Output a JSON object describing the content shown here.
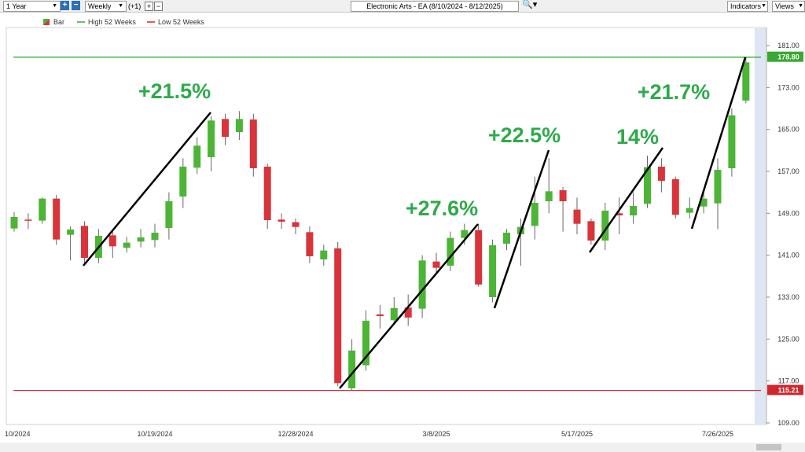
{
  "toolbar": {
    "period": "1 Year",
    "interval": "Weekly",
    "offset": "(+1)",
    "title": "Electronic Arts - EA (8/10/2024 - 8/12/2025)",
    "indicators": "Indicators",
    "views": "Views"
  },
  "chart_data": {
    "type": "candlestick",
    "legend": [
      "Bar",
      "High 52 Weeks",
      "Low 52 Weeks"
    ],
    "categories": [
      "10/2024",
      null,
      null,
      null,
      null,
      null,
      null,
      null,
      null,
      null,
      "10/19/2024",
      null,
      null,
      null,
      null,
      null,
      null,
      null,
      null,
      null,
      "12/28/2024",
      null,
      null,
      null,
      null,
      null,
      null,
      null,
      null,
      null,
      "3/8/2025",
      null,
      null,
      null,
      null,
      null,
      null,
      null,
      null,
      null,
      "5/17/2025",
      null,
      null,
      null,
      null,
      null,
      null,
      null,
      null,
      null,
      "7/26/2025",
      null,
      null
    ],
    "open": [
      146.1,
      147.8,
      147.6,
      151.8,
      144.9,
      146.6,
      140.5,
      144.8,
      142.4,
      143.6,
      143.9,
      146.2,
      152.2,
      157.7,
      159.7,
      167,
      164.5,
      166.9,
      157.9,
      147.8,
      147.3,
      145.4,
      140.2,
      142.3,
      115.6,
      120,
      129.7,
      128.6,
      131,
      130.8,
      139.8,
      139,
      144.3,
      145.8,
      133,
      143.2,
      145,
      146.6,
      151.3,
      153.4,
      149.7,
      147.5,
      143.8,
      149,
      148.6,
      150.8,
      157.9,
      155.5,
      149.1,
      150.3,
      150.9,
      157.6,
      170.5
    ],
    "high": [
      149.2,
      149,
      152,
      152.5,
      146.5,
      147.5,
      146,
      146,
      144.5,
      146,
      147,
      153,
      159.5,
      163.5,
      167.5,
      168,
      168.5,
      168,
      158.5,
      149,
      148,
      146.5,
      143,
      143.5,
      125,
      130.5,
      131.5,
      133,
      133.5,
      141,
      141.5,
      145.5,
      147,
      147,
      144,
      146,
      148,
      156,
      159.5,
      154,
      152,
      148,
      151,
      152,
      153,
      160,
      159.5,
      156,
      152,
      153,
      159.5,
      169,
      178.8
    ],
    "low": [
      145.5,
      146,
      147,
      143,
      140,
      139,
      139.5,
      140.5,
      141.5,
      142.5,
      142.5,
      144,
      150,
      156.5,
      157,
      162,
      163,
      156,
      146,
      146,
      145,
      139.5,
      139,
      116,
      115.21,
      119,
      127,
      128,
      127.5,
      129,
      137.5,
      138,
      143,
      135,
      132,
      142,
      139,
      144,
      149,
      145.5,
      145,
      143,
      142,
      145,
      147,
      150,
      153,
      148,
      148,
      149,
      146,
      156,
      170
    ],
    "close": [
      148.3,
      147.6,
      151.8,
      144,
      145.9,
      140.5,
      144.7,
      142.7,
      143.4,
      144.4,
      145.3,
      151.3,
      157.9,
      161.9,
      166.7,
      163.6,
      167,
      157.6,
      147.7,
      147.4,
      146.4,
      140.8,
      141.9,
      116.6,
      122.8,
      128.5,
      129.4,
      130.9,
      129.1,
      140,
      138.6,
      144.3,
      145.8,
      135.4,
      142.9,
      145.3,
      146.4,
      151,
      153.2,
      151.3,
      147,
      143.8,
      149.5,
      148.6,
      150.4,
      157.8,
      155.2,
      148.7,
      150,
      151.8,
      157.3,
      167.7,
      177.8
    ],
    "up_color": "#4cb536",
    "down_color": "#d8343a",
    "reference_lines": [
      {
        "name": "High 52 Weeks",
        "value": 178.8,
        "label": "178.80",
        "color": "#3aa832"
      },
      {
        "name": "Low 52 Weeks",
        "value": 115.21,
        "label": "115.21",
        "color": "#d0262c"
      }
    ],
    "ylim": [
      108.7,
      184.45
    ],
    "yticks": [
      {
        "value": 109,
        "label": "109.00"
      },
      {
        "value": 117,
        "label": "117.00"
      },
      {
        "value": 125,
        "label": "125.00"
      },
      {
        "value": 133,
        "label": "133.00"
      },
      {
        "value": 141,
        "label": "141.00"
      },
      {
        "value": 149,
        "label": "149.00"
      },
      {
        "value": 157,
        "label": "157.00"
      },
      {
        "value": 165,
        "label": "165.00"
      },
      {
        "value": 173,
        "label": "173.00"
      },
      {
        "value": 181,
        "label": "181.00"
      }
    ],
    "annotations": [
      "+21.5%",
      "+27.6%",
      "+22.5%",
      "14%",
      "+21.7%"
    ],
    "annotation_color": "#2eaa4a"
  }
}
